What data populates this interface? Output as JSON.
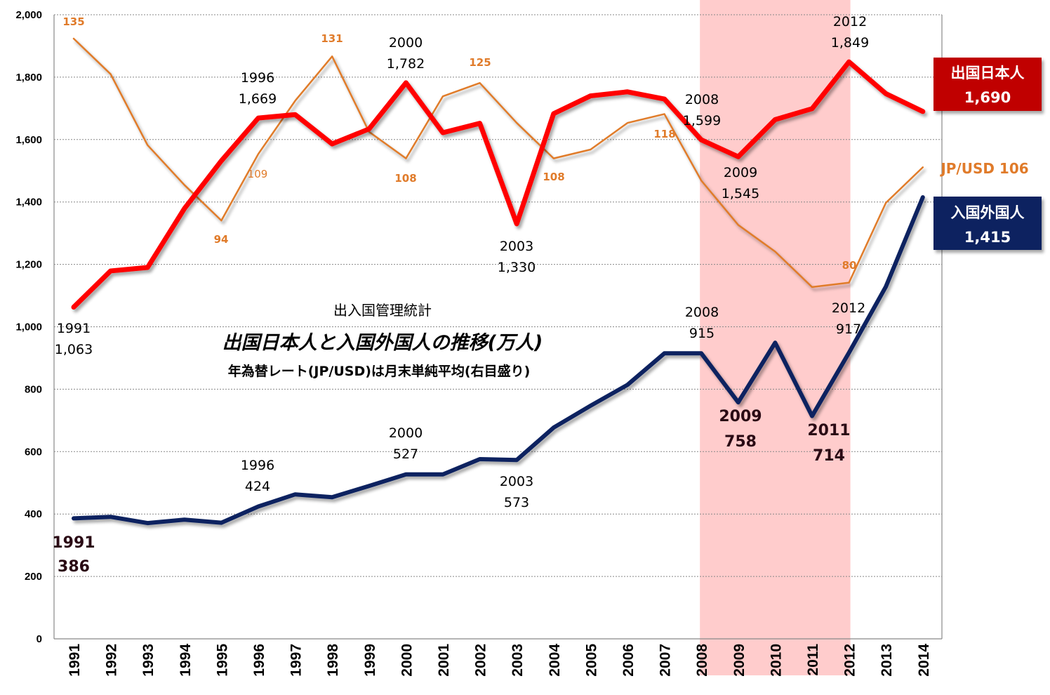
{
  "chart_data": {
    "type": "line",
    "title": "出入国管理統計",
    "subtitle": "出国日本人と入国外国人の推移(万人)",
    "note": "年為替レート(JP/USD)は月末単純平均(右目盛り)",
    "xlabel": "",
    "ylabel": "",
    "ylim": [
      0,
      2000
    ],
    "y_ticks": [
      "0",
      "200",
      "400",
      "600",
      "800",
      "1,000",
      "1,200",
      "1,400",
      "1,600",
      "1,800",
      "2,000"
    ],
    "grid": true,
    "categories": [
      "1991",
      "1992",
      "1993",
      "1994",
      "1995",
      "1996",
      "1997",
      "1998",
      "1999",
      "2000",
      "2001",
      "2002",
      "2003",
      "2004",
      "2005",
      "2006",
      "2007",
      "2008",
      "2009",
      "2010",
      "2011",
      "2012",
      "2013",
      "2014"
    ],
    "highlight_range": [
      "2008",
      "2012"
    ],
    "series": [
      {
        "name": "出国日本人",
        "color": "#ff0000",
        "axis": "left",
        "values": [
          1063,
          1179,
          1190,
          1379,
          1532,
          1669,
          1680,
          1586,
          1634,
          1782,
          1622,
          1652,
          1330,
          1683,
          1740,
          1753,
          1730,
          1599,
          1545,
          1664,
          1699,
          1849,
          1747,
          1690
        ]
      },
      {
        "name": "入国外国人",
        "color": "#0d2460",
        "axis": "left",
        "values": [
          386,
          391,
          371,
          382,
          372,
          424,
          463,
          454,
          490,
          527,
          527,
          576,
          573,
          677,
          747,
          814,
          915,
          915,
          758,
          949,
          714,
          917,
          1129,
          1415
        ]
      },
      {
        "name": "JP/USD",
        "color": "#e07b2a",
        "axis": "right",
        "values": [
          135,
          127,
          111,
          102,
          94,
          109,
          121,
          131,
          114,
          108,
          122,
          125,
          116,
          108,
          110,
          116,
          118,
          103,
          93,
          87,
          79,
          80,
          98,
          106
        ]
      }
    ],
    "annotations": {
      "red": [
        {
          "year": "1991",
          "value": "1,063"
        },
        {
          "year": "1996",
          "value": "1,669"
        },
        {
          "year": "2000",
          "value": "1,782"
        },
        {
          "year": "2003",
          "value": "1,330"
        },
        {
          "year": "2008",
          "value": "1,599"
        },
        {
          "year": "2009",
          "value": "1,545"
        },
        {
          "year": "2012",
          "value": "1,849"
        }
      ],
      "blue": [
        {
          "year": "1991",
          "value": "386"
        },
        {
          "year": "1996",
          "value": "424"
        },
        {
          "year": "2000",
          "value": "527"
        },
        {
          "year": "2003",
          "value": "573"
        },
        {
          "year": "2008",
          "value": "915"
        },
        {
          "year": "2009",
          "value": "758"
        },
        {
          "year": "2011",
          "value": "714"
        },
        {
          "year": "2012",
          "value": "917"
        }
      ],
      "orange": [
        "135",
        "94",
        "109",
        "131",
        "108",
        "125",
        "108",
        "118",
        "80"
      ]
    },
    "legend": {
      "red_label": "出国日本人",
      "red_value": "1,690",
      "blue_label": "入国外国人",
      "blue_value": "1,415",
      "orange_label": "JP/USD 106"
    }
  }
}
